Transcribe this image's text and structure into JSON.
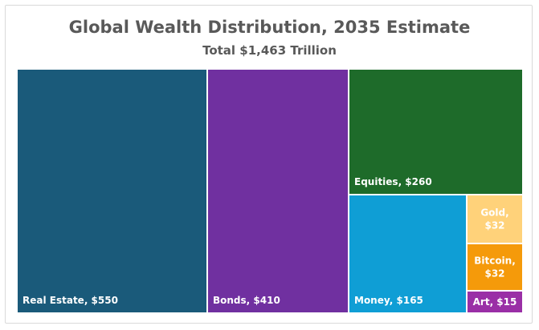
{
  "chart_data": {
    "type": "treemap",
    "title": "Global Wealth Distribution, 2035 Estimate",
    "subtitle": "Total $1,463 Trillion",
    "items": [
      {
        "name": "Real Estate",
        "value": 550,
        "label": "Real Estate, $550",
        "color": "#1a5a7a",
        "text_color": "#ffffff"
      },
      {
        "name": "Bonds",
        "value": 410,
        "label": "Bonds, $410",
        "color": "#7030a0",
        "text_color": "#ffffff"
      },
      {
        "name": "Equities",
        "value": 260,
        "label": "Equities, $260",
        "color": "#1e6b2a",
        "text_color": "#ffffff"
      },
      {
        "name": "Money",
        "value": 165,
        "label": "Money, $165",
        "color": "#0f9ed5",
        "text_color": "#ffffff"
      },
      {
        "name": "Gold",
        "value": 32,
        "label_lines": [
          "Gold,",
          "$32"
        ],
        "color": "#ffd27a",
        "text_color": "#ffffff"
      },
      {
        "name": "Bitcoin",
        "value": 32,
        "label_lines": [
          "Bitcoin,",
          "$32"
        ],
        "color": "#f59a0a",
        "text_color": "#ffffff"
      },
      {
        "name": "Art",
        "value": 15,
        "label": "Art, $15",
        "color": "#9a2fa6",
        "text_color": "#ffffff"
      }
    ]
  }
}
